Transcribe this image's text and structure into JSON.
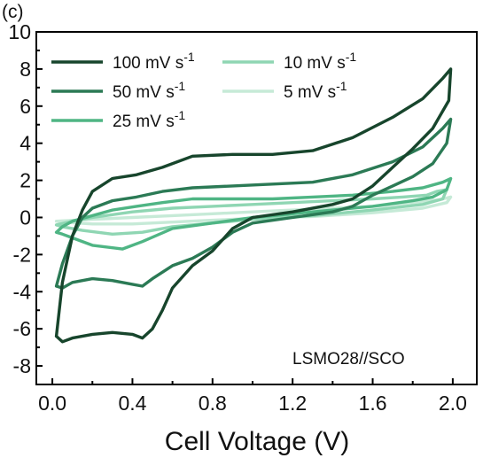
{
  "panel_label": "(c)",
  "chart_data": {
    "type": "line",
    "subtype": "cyclic-voltammetry loops",
    "title": "",
    "xlabel": "Cell Voltage (V)",
    "ylabel": "",
    "xlim": [
      -0.08,
      2.12
    ],
    "ylim": [
      -9,
      10
    ],
    "xticks": [
      "0.0",
      "0.4",
      "0.8",
      "1.2",
      "1.6",
      "2.0"
    ],
    "yticks": [
      "10",
      "8",
      "6",
      "4",
      "2",
      "0",
      "-2",
      "-4",
      "-6",
      "-8"
    ],
    "grid": false,
    "legend_position": "top-left",
    "annotation": "LSMO28//SCO",
    "series": [
      {
        "name": "100 mV s-1",
        "color": "#17452c",
        "upper": [
          [
            0.02,
            -6.4
          ],
          [
            0.05,
            -3.5
          ],
          [
            0.1,
            -1.0
          ],
          [
            0.15,
            0.4
          ],
          [
            0.2,
            1.4
          ],
          [
            0.3,
            2.1
          ],
          [
            0.42,
            2.3
          ],
          [
            0.55,
            2.7
          ],
          [
            0.7,
            3.3
          ],
          [
            0.9,
            3.4
          ],
          [
            1.1,
            3.4
          ],
          [
            1.3,
            3.6
          ],
          [
            1.5,
            4.3
          ],
          [
            1.7,
            5.4
          ],
          [
            1.85,
            6.4
          ],
          [
            1.95,
            7.5
          ],
          [
            1.99,
            8.0
          ]
        ],
        "lower": [
          [
            1.99,
            8.0
          ],
          [
            1.98,
            6.3
          ],
          [
            1.9,
            4.8
          ],
          [
            1.8,
            3.7
          ],
          [
            1.7,
            2.7
          ],
          [
            1.6,
            1.7
          ],
          [
            1.5,
            1.0
          ],
          [
            1.4,
            0.7
          ],
          [
            1.2,
            0.3
          ],
          [
            1.0,
            0.0
          ],
          [
            0.9,
            -0.6
          ],
          [
            0.8,
            -1.8
          ],
          [
            0.7,
            -2.6
          ],
          [
            0.6,
            -3.8
          ],
          [
            0.55,
            -5.0
          ],
          [
            0.5,
            -6.0
          ],
          [
            0.45,
            -6.5
          ],
          [
            0.4,
            -6.3
          ],
          [
            0.3,
            -6.2
          ],
          [
            0.2,
            -6.3
          ],
          [
            0.1,
            -6.5
          ],
          [
            0.05,
            -6.7
          ],
          [
            0.02,
            -6.4
          ]
        ]
      },
      {
        "name": "50 mV s-1",
        "color": "#2b7a55",
        "upper": [
          [
            0.02,
            -3.7
          ],
          [
            0.05,
            -2.5
          ],
          [
            0.1,
            -1.0
          ],
          [
            0.15,
            0.0
          ],
          [
            0.2,
            0.5
          ],
          [
            0.3,
            0.9
          ],
          [
            0.42,
            1.1
          ],
          [
            0.55,
            1.4
          ],
          [
            0.7,
            1.6
          ],
          [
            0.9,
            1.7
          ],
          [
            1.1,
            1.8
          ],
          [
            1.3,
            1.9
          ],
          [
            1.5,
            2.3
          ],
          [
            1.7,
            3.0
          ],
          [
            1.85,
            3.8
          ],
          [
            1.95,
            4.8
          ],
          [
            1.99,
            5.3
          ]
        ],
        "lower": [
          [
            1.99,
            5.3
          ],
          [
            1.97,
            4.0
          ],
          [
            1.9,
            2.9
          ],
          [
            1.8,
            2.2
          ],
          [
            1.7,
            1.7
          ],
          [
            1.6,
            1.2
          ],
          [
            1.5,
            0.6
          ],
          [
            1.4,
            0.3
          ],
          [
            1.2,
            0.0
          ],
          [
            1.0,
            -0.3
          ],
          [
            0.9,
            -0.8
          ],
          [
            0.8,
            -1.6
          ],
          [
            0.7,
            -2.2
          ],
          [
            0.6,
            -2.6
          ],
          [
            0.5,
            -3.3
          ],
          [
            0.45,
            -3.7
          ],
          [
            0.4,
            -3.6
          ],
          [
            0.3,
            -3.4
          ],
          [
            0.2,
            -3.3
          ],
          [
            0.1,
            -3.5
          ],
          [
            0.05,
            -3.8
          ],
          [
            0.02,
            -3.7
          ]
        ]
      },
      {
        "name": "25 mV s-1",
        "color": "#4fb584",
        "upper": [
          [
            0.02,
            -0.8
          ],
          [
            0.05,
            -0.5
          ],
          [
            0.1,
            -0.2
          ],
          [
            0.2,
            0.1
          ],
          [
            0.3,
            0.4
          ],
          [
            0.42,
            0.6
          ],
          [
            0.55,
            0.8
          ],
          [
            0.7,
            1.0
          ],
          [
            0.9,
            1.0
          ],
          [
            1.1,
            1.0
          ],
          [
            1.3,
            1.1
          ],
          [
            1.5,
            1.2
          ],
          [
            1.7,
            1.4
          ],
          [
            1.85,
            1.6
          ],
          [
            1.95,
            1.9
          ],
          [
            1.99,
            2.1
          ]
        ],
        "lower": [
          [
            1.99,
            2.1
          ],
          [
            1.97,
            1.5
          ],
          [
            1.9,
            1.1
          ],
          [
            1.8,
            0.9
          ],
          [
            1.6,
            0.6
          ],
          [
            1.4,
            0.4
          ],
          [
            1.2,
            0.2
          ],
          [
            1.0,
            0.0
          ],
          [
            0.8,
            -0.3
          ],
          [
            0.6,
            -0.6
          ],
          [
            0.45,
            -1.3
          ],
          [
            0.35,
            -1.7
          ],
          [
            0.2,
            -1.5
          ],
          [
            0.1,
            -1.1
          ],
          [
            0.05,
            -0.9
          ],
          [
            0.02,
            -0.8
          ]
        ]
      },
      {
        "name": "10 mV s-1",
        "color": "#8fd6b3",
        "upper": [
          [
            0.02,
            -0.4
          ],
          [
            0.1,
            -0.2
          ],
          [
            0.2,
            0.0
          ],
          [
            0.4,
            0.3
          ],
          [
            0.6,
            0.5
          ],
          [
            0.8,
            0.6
          ],
          [
            1.0,
            0.7
          ],
          [
            1.2,
            0.8
          ],
          [
            1.4,
            0.9
          ],
          [
            1.6,
            1.0
          ],
          [
            1.75,
            1.1
          ],
          [
            1.87,
            1.2
          ],
          [
            1.92,
            1.4
          ],
          [
            1.97,
            1.5
          ]
        ],
        "lower": [
          [
            1.97,
            1.5
          ],
          [
            1.95,
            1.0
          ],
          [
            1.85,
            0.7
          ],
          [
            1.6,
            0.4
          ],
          [
            1.3,
            0.1
          ],
          [
            1.0,
            -0.1
          ],
          [
            0.8,
            -0.3
          ],
          [
            0.6,
            -0.5
          ],
          [
            0.45,
            -0.8
          ],
          [
            0.3,
            -0.9
          ],
          [
            0.15,
            -0.7
          ],
          [
            0.05,
            -0.5
          ],
          [
            0.02,
            -0.4
          ]
        ]
      },
      {
        "name": "5 mV s-1",
        "color": "#c6ead7",
        "upper": [
          [
            0.02,
            -0.2
          ],
          [
            0.2,
            -0.1
          ],
          [
            0.4,
            0.0
          ],
          [
            0.6,
            0.1
          ],
          [
            0.8,
            0.2
          ],
          [
            1.0,
            0.3
          ],
          [
            1.2,
            0.4
          ],
          [
            1.4,
            0.5
          ],
          [
            1.6,
            0.6
          ],
          [
            1.8,
            0.8
          ],
          [
            1.93,
            0.95
          ],
          [
            1.99,
            1.1
          ]
        ],
        "lower": [
          [
            1.99,
            1.1
          ],
          [
            1.97,
            0.8
          ],
          [
            1.85,
            0.5
          ],
          [
            1.6,
            0.25
          ],
          [
            1.3,
            0.05
          ],
          [
            1.0,
            -0.05
          ],
          [
            0.8,
            -0.15
          ],
          [
            0.6,
            -0.25
          ],
          [
            0.4,
            -0.35
          ],
          [
            0.2,
            -0.35
          ],
          [
            0.05,
            -0.25
          ],
          [
            0.02,
            -0.2
          ]
        ]
      }
    ]
  }
}
